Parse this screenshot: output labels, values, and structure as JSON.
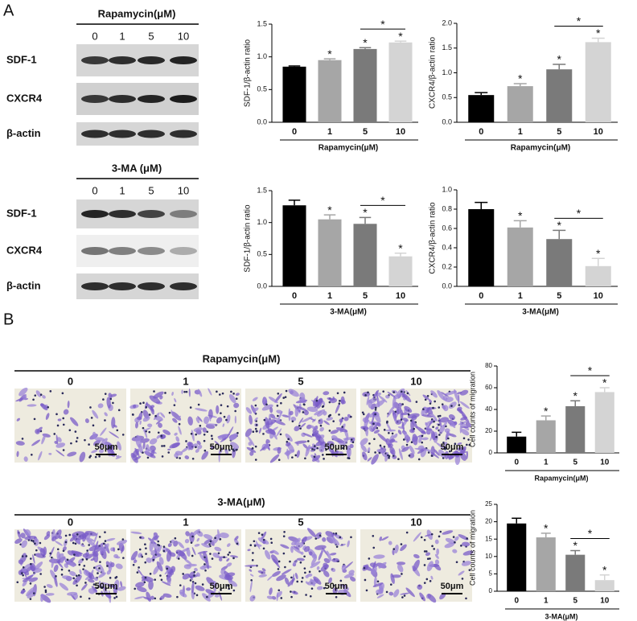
{
  "panel_labels": [
    "A",
    "B"
  ],
  "blots": [
    {
      "title": "Rapamycin(μM)",
      "doses": [
        "0",
        "1",
        "5",
        "10"
      ],
      "rows": [
        "SDF-1",
        "CXCR4",
        "β-actin"
      ]
    },
    {
      "title": "3-MA (μM)",
      "doses": [
        "0",
        "1",
        "5",
        "10"
      ],
      "rows": [
        "SDF-1",
        "CXCR4",
        "β-actin"
      ]
    }
  ],
  "micrographs": [
    {
      "title": "Rapamycin(μM)",
      "doses": [
        "0",
        "1",
        "5",
        "10"
      ],
      "scale_bar": "50μm"
    },
    {
      "title": "3-MA(μM)",
      "doses": [
        "0",
        "1",
        "5",
        "10"
      ],
      "scale_bar": "50μm"
    }
  ],
  "chart_data": [
    {
      "type": "bar",
      "y_label": "SDF-1/β-actin ratio",
      "x_label": "Rapamycin(μM)",
      "categories": [
        "0",
        "1",
        "5",
        "10"
      ],
      "values": [
        0.85,
        0.95,
        1.12,
        1.22
      ],
      "errors": [
        0.01,
        0.02,
        0.02,
        0.02
      ],
      "colors": [
        "#000000",
        "#a6a6a6",
        "#7a7a7a",
        "#d4d4d4"
      ],
      "sig_labels": [
        null,
        "*",
        "*",
        "*"
      ],
      "bracket_label": "*",
      "ylim": [
        0,
        1.5
      ],
      "yticks": [
        {
          "value": 0,
          "label": "0.0"
        },
        0.5,
        {
          "value": 1,
          "label": "1.0"
        },
        1.5
      ]
    },
    {
      "type": "bar",
      "y_label": "CXCR4/β-actin ratio",
      "x_label": "Rapamycin(μM)",
      "categories": [
        "0",
        "1",
        "5",
        "10"
      ],
      "values": [
        0.55,
        0.73,
        1.07,
        1.62
      ],
      "errors": [
        0.05,
        0.05,
        0.1,
        0.08
      ],
      "colors": [
        "#000000",
        "#a6a6a6",
        "#7a7a7a",
        "#d4d4d4"
      ],
      "sig_labels": [
        null,
        "*",
        "*",
        "*"
      ],
      "bracket_label": "*",
      "ylim": [
        0,
        2
      ],
      "yticks": [
        {
          "value": 0,
          "label": "0.0"
        },
        0.5,
        {
          "value": 1,
          "label": "1.0"
        },
        1.5,
        {
          "value": 2,
          "label": "2.0"
        }
      ]
    },
    {
      "type": "bar",
      "y_label": "SDF-1/β-actin ratio",
      "x_label": "3-MA(μM)",
      "categories": [
        "0",
        "1",
        "5",
        "10"
      ],
      "values": [
        1.27,
        1.05,
        0.98,
        0.47
      ],
      "errors": [
        0.08,
        0.07,
        0.1,
        0.05
      ],
      "colors": [
        "#000000",
        "#a6a6a6",
        "#7a7a7a",
        "#d4d4d4"
      ],
      "sig_labels": [
        null,
        "*",
        "*",
        "*"
      ],
      "bracket_label": "*",
      "ylim": [
        0,
        1.5
      ],
      "yticks": [
        {
          "value": 0,
          "label": "0.0"
        },
        0.5,
        {
          "value": 1,
          "label": "1.0"
        },
        1.5
      ]
    },
    {
      "type": "bar",
      "y_label": "CXCR4/β-actin ratio",
      "x_label": "3-MA(μM)",
      "categories": [
        "0",
        "1",
        "5",
        "10"
      ],
      "values": [
        0.8,
        0.61,
        0.49,
        0.21
      ],
      "errors": [
        0.07,
        0.07,
        0.09,
        0.08
      ],
      "colors": [
        "#000000",
        "#a6a6a6",
        "#7a7a7a",
        "#d4d4d4"
      ],
      "sig_labels": [
        null,
        "*",
        "*",
        "*"
      ],
      "bracket_label": "*",
      "ylim": [
        0,
        1
      ],
      "yticks": [
        {
          "value": 0,
          "label": "0.0"
        },
        0.2,
        0.4,
        0.6,
        0.8,
        {
          "value": 1,
          "label": "1.0"
        }
      ]
    },
    {
      "type": "bar",
      "y_label": "Cell counts of migration",
      "x_label": "Rapamycin(μM)",
      "categories": [
        "0",
        "1",
        "5",
        "10"
      ],
      "values": [
        15,
        30,
        43,
        56
      ],
      "errors": [
        4,
        4,
        5,
        4
      ],
      "colors": [
        "#000000",
        "#a6a6a6",
        "#7a7a7a",
        "#d4d4d4"
      ],
      "sig_labels": [
        null,
        "*",
        "*",
        "*"
      ],
      "bracket_label": "*",
      "ylim": [
        0,
        80
      ],
      "yticks": [
        0,
        20,
        40,
        60,
        80
      ]
    },
    {
      "type": "bar",
      "y_label": "Cell counts of migration",
      "x_label": "3-MA(μM)",
      "categories": [
        "0",
        "1",
        "5",
        "10"
      ],
      "values": [
        19.5,
        15.5,
        10.5,
        3.2
      ],
      "errors": [
        1.5,
        1.2,
        1.2,
        1.5
      ],
      "colors": [
        "#000000",
        "#a6a6a6",
        "#7a7a7a",
        "#d4d4d4"
      ],
      "sig_labels": [
        null,
        "*",
        "*",
        "*"
      ],
      "bracket_label": "*",
      "ylim": [
        0,
        25
      ],
      "yticks": [
        0,
        5,
        10,
        15,
        20,
        25
      ]
    }
  ]
}
